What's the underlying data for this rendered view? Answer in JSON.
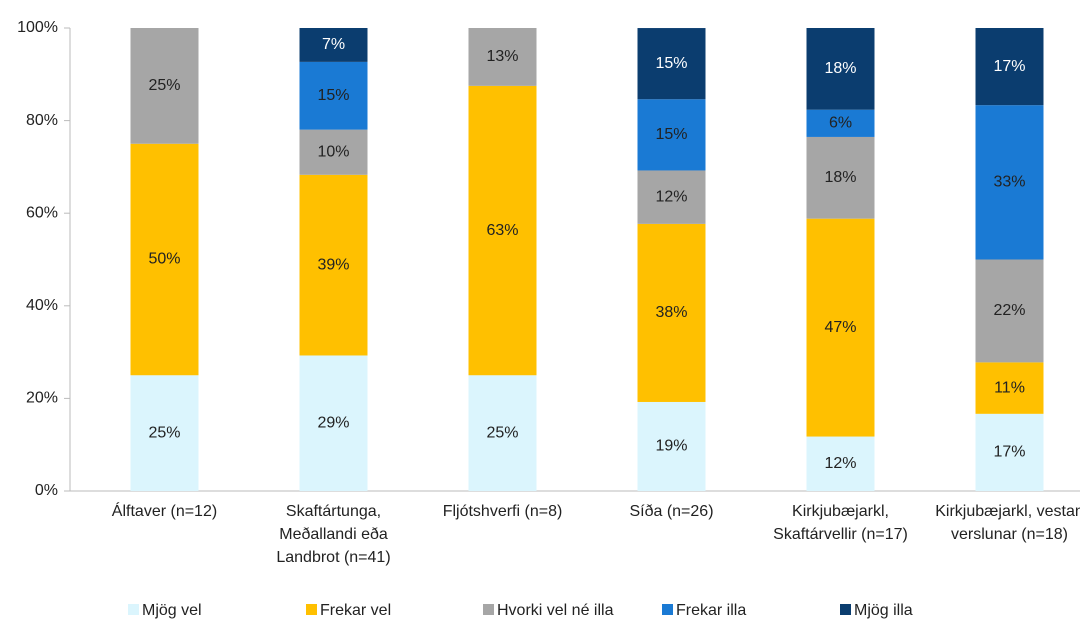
{
  "chart_data": {
    "type": "stacked_bar",
    "categories": [
      "Álftaver (n=12)",
      "Skaftártunga, Meðallandi eða Landbrot (n=41)",
      "Fljótshverfi (n=8)",
      "Síða (n=26)",
      "Kirkjubæjarkl, Skaftárvellir (n=17)",
      "Kirkjubæjarkl, vestan verslunar (n=18)"
    ],
    "series": [
      {
        "name": "Mjög vel",
        "color": "#dbf5fd",
        "values": [
          25,
          29.27,
          25,
          19.23,
          11.76,
          16.67
        ],
        "value_labels": [
          "25%",
          "29%",
          "25%",
          "19%",
          "12%",
          "17%"
        ]
      },
      {
        "name": "Frekar vel",
        "color": "#ffc000",
        "values": [
          50,
          39.02,
          62.5,
          38.46,
          47.06,
          11.11
        ],
        "value_labels": [
          "50%",
          "39%",
          "63%",
          "38%",
          "47%",
          "11%"
        ]
      },
      {
        "name": "Hvorki vel né illa",
        "color": "#a6a6a6",
        "values": [
          25,
          9.76,
          12.5,
          11.54,
          17.65,
          22.22
        ],
        "value_labels": [
          "25%",
          "10%",
          "13%",
          "12%",
          "18%",
          "22%"
        ]
      },
      {
        "name": "Frekar illa",
        "color": "#1a7ad4",
        "values": [
          null,
          14.63,
          null,
          15.38,
          5.88,
          33.33
        ],
        "value_labels": [
          null,
          "15%",
          null,
          "15%",
          "6%",
          "33%"
        ]
      },
      {
        "name": "Mjög illa",
        "color": "#0b3d6f",
        "values": [
          null,
          7.32,
          null,
          15.38,
          17.65,
          16.67
        ],
        "value_labels": [
          null,
          "7%",
          null,
          "15%",
          "18%",
          "17%"
        ]
      }
    ],
    "ylim": [
      0,
      100
    ],
    "yticks": [
      {
        "value": 0,
        "label": "0%"
      },
      {
        "value": 20,
        "label": "20%"
      },
      {
        "value": 40,
        "label": "40%"
      },
      {
        "value": 60,
        "label": "60%"
      },
      {
        "value": 80,
        "label": "80%"
      },
      {
        "value": 100,
        "label": "100%"
      }
    ],
    "legend": "bottom"
  }
}
